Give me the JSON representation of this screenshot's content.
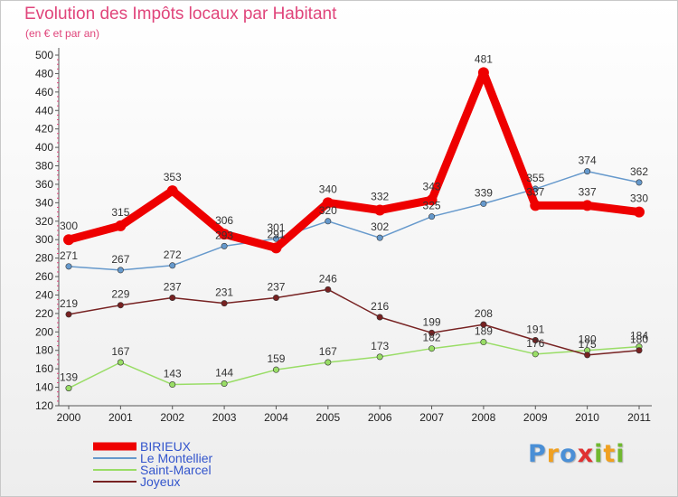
{
  "chart_data": {
    "type": "line",
    "title": "Evolution des Impôts locaux par Habitant",
    "subtitle": "(en € et par an)",
    "xlabel": "",
    "ylabel": "",
    "ylim": [
      120,
      500
    ],
    "ytick_step": 20,
    "grid": false,
    "legend_position": "bottom-left",
    "categories": [
      "2000",
      "2001",
      "2002",
      "2003",
      "2004",
      "2005",
      "2006",
      "2007",
      "2008",
      "2009",
      "2010",
      "2011"
    ],
    "series": [
      {
        "name": "BIRIEUX",
        "color": "#ee0000",
        "values": [
          300,
          315,
          353,
          306,
          291,
          340,
          332,
          343,
          481,
          337,
          337,
          330
        ]
      },
      {
        "name": "Le Montellier",
        "color": "#6699cc",
        "values": [
          271,
          267,
          272,
          293,
          301,
          320,
          302,
          325,
          339,
          355,
          374,
          362
        ]
      },
      {
        "name": "Saint-Marcel",
        "color": "#99dd66",
        "values": [
          139,
          167,
          143,
          144,
          159,
          167,
          173,
          182,
          189,
          176,
          180,
          184
        ]
      },
      {
        "name": "Joyeux",
        "color": "#772222",
        "values": [
          219,
          229,
          237,
          231,
          237,
          246,
          216,
          199,
          208,
          191,
          175,
          180
        ]
      }
    ]
  },
  "logo": {
    "letters": [
      "P",
      "r",
      "o",
      "x",
      "i",
      "t",
      "i"
    ],
    "colors": [
      "#4a8fd6",
      "#f0a020",
      "#4a8fd6",
      "#e03030",
      "#70b830",
      "#f0a020",
      "#70b830"
    ]
  },
  "colors": {
    "title": "#e0457b",
    "legend_text": "#3355cc"
  }
}
